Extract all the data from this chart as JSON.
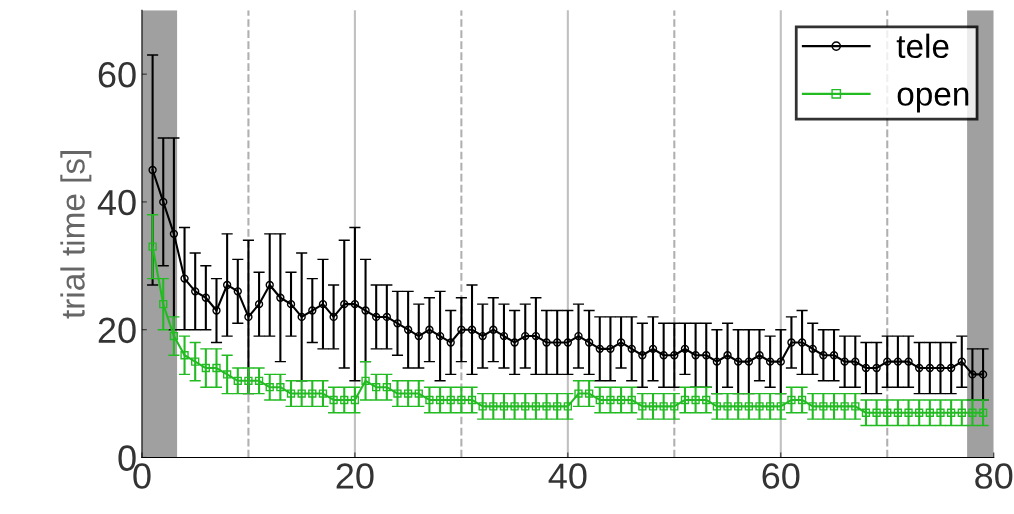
{
  "chart_data": {
    "type": "line",
    "ylabel": "trial time [s]",
    "xlim": [
      0,
      80
    ],
    "ylim": [
      0,
      70
    ],
    "xticks": [
      0,
      20,
      40,
      60,
      80
    ],
    "yticks": [
      0,
      20,
      40,
      60
    ],
    "grid": false,
    "legend": "top right",
    "x": [
      1,
      2,
      3,
      4,
      5,
      6,
      7,
      8,
      9,
      10,
      11,
      12,
      13,
      14,
      15,
      16,
      17,
      18,
      19,
      20,
      21,
      22,
      23,
      24,
      25,
      26,
      27,
      28,
      29,
      30,
      31,
      32,
      33,
      34,
      35,
      36,
      37,
      38,
      39,
      40,
      41,
      42,
      43,
      44,
      45,
      46,
      47,
      48,
      49,
      50,
      51,
      52,
      53,
      54,
      55,
      56,
      57,
      58,
      59,
      60,
      61,
      62,
      63,
      64,
      65,
      66,
      67,
      68,
      69,
      70,
      71,
      72,
      73,
      74,
      75,
      76,
      77,
      78,
      79
    ],
    "bands": [
      {
        "axis": "x",
        "from": 0,
        "to": 3.3,
        "color": "#a0a0a0"
      },
      {
        "axis": "x",
        "from": 77.5,
        "to": 80,
        "color": "#a0a0a0"
      }
    ],
    "ref_lines": [
      {
        "axis": "x",
        "value": 10,
        "color": "#b0b0b0",
        "line_style": "dashed"
      },
      {
        "axis": "x",
        "value": 20,
        "color": "#c0c0c0",
        "line_style": "solid"
      },
      {
        "axis": "x",
        "value": 30,
        "color": "#b0b0b0",
        "line_style": "dashed"
      },
      {
        "axis": "x",
        "value": 40,
        "color": "#c0c0c0",
        "line_style": "solid"
      },
      {
        "axis": "x",
        "value": 50,
        "color": "#b0b0b0",
        "line_style": "dashed"
      },
      {
        "axis": "x",
        "value": 60,
        "color": "#c0c0c0",
        "line_style": "solid"
      },
      {
        "axis": "x",
        "value": 70,
        "color": "#b0b0b0",
        "line_style": "dashed"
      }
    ],
    "series": [
      {
        "name": "tele",
        "color": "#000000",
        "marker": "circle",
        "values": [
          45,
          40,
          35,
          28,
          26,
          25,
          23,
          27,
          26,
          22,
          24,
          27,
          25,
          24,
          22,
          23,
          24,
          22,
          24,
          24,
          23,
          22,
          22,
          21,
          20,
          19,
          20,
          19,
          18,
          20,
          20,
          19,
          20,
          19,
          18,
          19,
          19,
          18,
          18,
          18,
          19,
          18,
          17,
          17,
          18,
          17,
          16,
          17,
          16,
          16,
          17,
          16,
          16,
          15,
          16,
          15,
          15,
          16,
          15,
          15,
          18,
          18,
          17,
          16,
          16,
          15,
          15,
          14,
          14,
          15,
          15,
          15,
          14,
          14,
          14,
          14,
          15,
          13,
          13
        ],
        "errors": [
          18,
          10,
          15,
          8,
          6,
          5,
          5,
          8,
          5,
          12,
          5,
          8,
          10,
          5,
          10,
          5,
          7,
          5,
          10,
          12,
          8,
          5,
          5,
          5,
          6,
          5,
          5,
          7,
          5,
          5,
          7,
          5,
          5,
          5,
          5,
          5,
          6,
          5,
          5,
          5,
          5,
          5,
          5,
          5,
          4,
          5,
          5,
          5,
          5,
          5,
          4,
          5,
          5,
          5,
          5,
          5,
          5,
          4,
          4,
          5,
          4,
          5,
          4,
          4,
          4,
          4,
          4,
          4,
          4,
          4,
          4,
          4,
          4,
          4,
          4,
          4,
          4,
          4,
          4
        ]
      },
      {
        "name": "open",
        "color": "#22bb22",
        "marker": "square",
        "values": [
          33,
          24,
          19,
          16,
          15,
          14,
          14,
          13,
          12,
          12,
          12,
          11,
          11,
          10,
          10,
          10,
          10,
          9,
          9,
          9,
          12,
          11,
          11,
          10,
          10,
          10,
          9,
          9,
          9,
          9,
          9,
          8,
          8,
          8,
          8,
          8,
          8,
          8,
          8,
          8,
          10,
          10,
          9,
          9,
          9,
          9,
          8,
          8,
          8,
          8,
          9,
          9,
          9,
          8,
          8,
          8,
          8,
          8,
          8,
          8,
          9,
          9,
          8,
          8,
          8,
          8,
          8,
          7,
          7,
          7,
          7,
          7,
          7,
          7,
          7,
          7,
          7,
          7,
          7
        ],
        "errors": [
          5,
          4,
          3,
          3,
          3,
          3,
          3,
          3,
          2,
          2,
          2,
          2,
          2,
          2,
          2,
          2,
          2,
          2,
          2,
          2,
          3,
          2,
          2,
          2,
          2,
          2,
          2,
          2,
          2,
          2,
          2,
          2,
          2,
          2,
          2,
          2,
          2,
          2,
          2,
          2,
          2,
          2,
          2,
          2,
          2,
          2,
          2,
          2,
          2,
          2,
          2,
          2,
          2,
          2,
          2,
          2,
          2,
          2,
          2,
          2,
          2,
          2,
          2,
          2,
          2,
          2,
          2,
          2,
          2,
          2,
          2,
          2,
          2,
          2,
          2,
          2,
          2,
          2,
          2
        ]
      }
    ]
  }
}
